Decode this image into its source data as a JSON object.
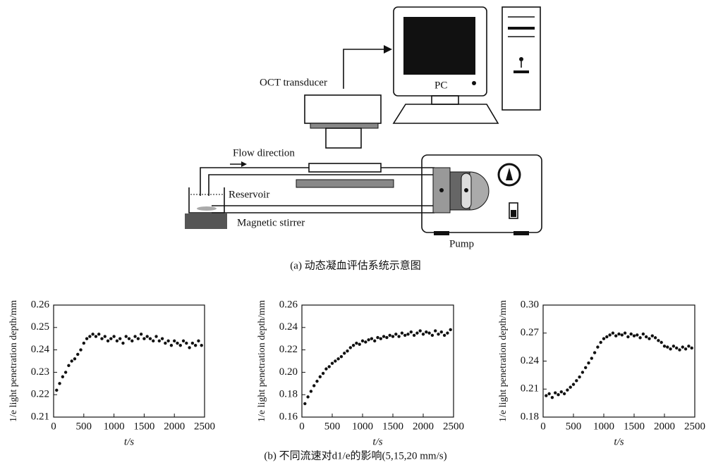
{
  "diagram": {
    "labels": {
      "oct": "OCT transducer",
      "pc": "PC",
      "flow": "Flow direction",
      "reservoir": "Reservoir",
      "stirrer": "Magnetic stirrer",
      "pump": "Pump"
    },
    "caption": "(a) 动态凝血评估系统示意图"
  },
  "caption_b": "(b) 不同流速对d1/e的影响(5,15,20 mm/s)",
  "chart_data": [
    {
      "type": "scatter",
      "x_label": "t/s",
      "y_label": "1/e light penetration depth/mm",
      "color": "#111111",
      "x": [
        50,
        100,
        150,
        200,
        250,
        300,
        350,
        400,
        450,
        500,
        550,
        600,
        650,
        700,
        750,
        800,
        850,
        900,
        950,
        1000,
        1050,
        1100,
        1150,
        1200,
        1250,
        1300,
        1350,
        1400,
        1450,
        1500,
        1550,
        1600,
        1650,
        1700,
        1750,
        1800,
        1850,
        1900,
        1950,
        2000,
        2050,
        2100,
        2150,
        2200,
        2250,
        2300,
        2350,
        2400,
        2450
      ],
      "values": [
        0.222,
        0.225,
        0.228,
        0.23,
        0.233,
        0.235,
        0.236,
        0.238,
        0.24,
        0.243,
        0.245,
        0.246,
        0.247,
        0.246,
        0.247,
        0.245,
        0.246,
        0.244,
        0.245,
        0.246,
        0.244,
        0.245,
        0.243,
        0.246,
        0.245,
        0.244,
        0.246,
        0.245,
        0.247,
        0.245,
        0.246,
        0.245,
        0.244,
        0.246,
        0.244,
        0.245,
        0.243,
        0.244,
        0.242,
        0.244,
        0.243,
        0.242,
        0.244,
        0.243,
        0.241,
        0.243,
        0.242,
        0.244,
        0.242
      ],
      "xlim": [
        0,
        2500
      ],
      "xticks": [
        0,
        500,
        1000,
        1500,
        2000,
        2500
      ],
      "ylim": [
        0.21,
        0.26
      ],
      "yticks": [
        0.21,
        0.22,
        0.23,
        0.24,
        0.25,
        0.26
      ]
    },
    {
      "type": "scatter",
      "x_label": "t/s",
      "y_label": "1/e light penetration depth/mm",
      "color": "#111111",
      "x": [
        50,
        100,
        150,
        200,
        250,
        300,
        350,
        400,
        450,
        500,
        550,
        600,
        650,
        700,
        750,
        800,
        850,
        900,
        950,
        1000,
        1050,
        1100,
        1150,
        1200,
        1250,
        1300,
        1350,
        1400,
        1450,
        1500,
        1550,
        1600,
        1650,
        1700,
        1750,
        1800,
        1850,
        1900,
        1950,
        2000,
        2050,
        2100,
        2150,
        2200,
        2250,
        2300,
        2350,
        2400,
        2450
      ],
      "values": [
        0.172,
        0.178,
        0.183,
        0.188,
        0.192,
        0.196,
        0.199,
        0.203,
        0.205,
        0.208,
        0.21,
        0.212,
        0.214,
        0.217,
        0.219,
        0.222,
        0.224,
        0.226,
        0.225,
        0.228,
        0.227,
        0.229,
        0.23,
        0.228,
        0.231,
        0.23,
        0.232,
        0.231,
        0.233,
        0.232,
        0.234,
        0.232,
        0.235,
        0.233,
        0.234,
        0.236,
        0.233,
        0.235,
        0.237,
        0.234,
        0.236,
        0.235,
        0.233,
        0.237,
        0.234,
        0.236,
        0.233,
        0.235,
        0.238
      ],
      "xlim": [
        0,
        2500
      ],
      "xticks": [
        0,
        500,
        1000,
        1500,
        2000,
        2500
      ],
      "ylim": [
        0.16,
        0.26
      ],
      "yticks": [
        0.16,
        0.18,
        {
          "value": 0.2,
          "label": "0.20"
        },
        0.22,
        0.24,
        0.26
      ]
    },
    {
      "type": "scatter",
      "x_label": "t/s",
      "y_label": "1/e light penetration depth/mm",
      "color": "#111111",
      "x": [
        50,
        100,
        150,
        200,
        250,
        300,
        350,
        400,
        450,
        500,
        550,
        600,
        650,
        700,
        750,
        800,
        850,
        900,
        950,
        1000,
        1050,
        1100,
        1150,
        1200,
        1250,
        1300,
        1350,
        1400,
        1450,
        1500,
        1550,
        1600,
        1650,
        1700,
        1750,
        1800,
        1850,
        1900,
        1950,
        2000,
        2050,
        2100,
        2150,
        2200,
        2250,
        2300,
        2350,
        2400,
        2450
      ],
      "values": [
        0.203,
        0.205,
        0.201,
        0.206,
        0.204,
        0.207,
        0.205,
        0.209,
        0.212,
        0.215,
        0.219,
        0.223,
        0.228,
        0.233,
        0.238,
        0.243,
        0.249,
        0.255,
        0.26,
        0.264,
        0.266,
        0.268,
        0.27,
        0.267,
        0.269,
        0.268,
        0.27,
        0.266,
        0.269,
        0.267,
        0.268,
        0.265,
        0.269,
        0.266,
        0.264,
        0.267,
        0.265,
        0.262,
        0.26,
        0.256,
        0.255,
        0.253,
        0.256,
        0.254,
        0.252,
        0.255,
        0.253,
        0.256,
        0.254
      ],
      "xlim": [
        0,
        2500
      ],
      "xticks": [
        0,
        500,
        1000,
        1500,
        2000,
        2500
      ],
      "ylim": [
        0.18,
        0.3
      ],
      "yticks": [
        0.18,
        0.21,
        0.24,
        0.27,
        {
          "value": 0.3,
          "label": "0.30"
        }
      ]
    }
  ]
}
